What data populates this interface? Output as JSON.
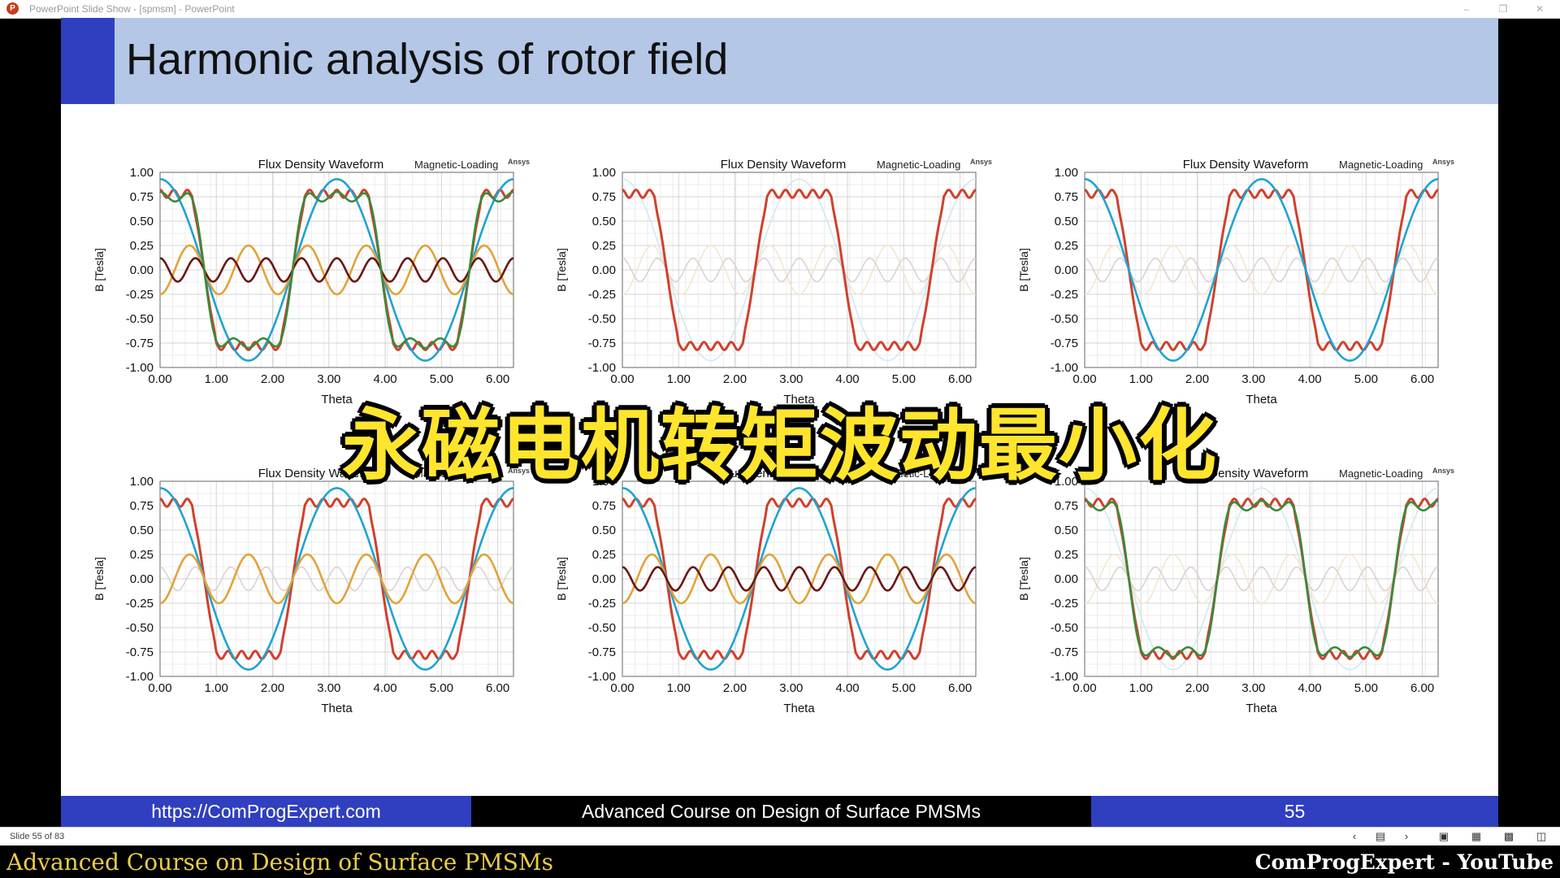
{
  "window": {
    "title": "PowerPoint Slide Show - [spmsm] - PowerPoint",
    "app_icon": "powerpoint-icon",
    "controls": [
      "minimize-icon",
      "restore-icon",
      "close-icon"
    ]
  },
  "slide": {
    "title": "Harmonic analysis of rotor field",
    "footer": {
      "left": "https://ComProgExpert.com",
      "center": "Advanced Course on Design of Surface PMSMs",
      "right": "55"
    }
  },
  "overlay": {
    "caption": "永磁电机转矩波动最小化"
  },
  "statusbar": {
    "slide_counter": "Slide 55 of 83",
    "icons": [
      "prev-icon",
      "slide-sorter-icon",
      "next-icon",
      "normal-view-icon",
      "grid-view-icon",
      "reading-view-icon",
      "slideshow-icon"
    ]
  },
  "bottom_band": {
    "left": "Advanced Course on Design of Surface PMSMs",
    "right": "ComProgExpert - YouTube"
  },
  "colors": {
    "accent": "#2f3fbf",
    "title_band": "#b4c7e7",
    "overlay_text": "#ffe52e",
    "fundamental": "#1fa3d1",
    "third_harmonic": "#e1a33a",
    "fifth_harmonic": "#6b1616",
    "total": "#d0402c",
    "sum": "#3a8a3a"
  },
  "chart_data": [
    {
      "type": "line",
      "title": "Flux Density Waveform",
      "subtitle": "Magnetic-Loading",
      "brand": "Ansys",
      "xlabel": "Theta",
      "ylabel": "B [Tesla]",
      "xlim": [
        0,
        6.28
      ],
      "ylim": [
        -1,
        1
      ],
      "xticks": [
        "0.00",
        "1.00",
        "2.00",
        "3.00",
        "4.00",
        "5.00",
        "6.00"
      ],
      "yticks": [
        "1.00",
        "0.75",
        "0.50",
        "0.25",
        "0.00",
        "-0.25",
        "-0.50",
        "-0.75",
        "-1.00"
      ],
      "grid": true,
      "poles": 2,
      "series": [
        {
          "key": "total",
          "waveform": "flat-top with ripple",
          "peak": 0.78,
          "faded": false
        },
        {
          "key": "fundamental",
          "harmonic": 1,
          "amplitude": 0.93,
          "faded": false
        },
        {
          "key": "third_harmonic",
          "harmonic": 3,
          "amplitude": 0.25,
          "faded": false
        },
        {
          "key": "fifth_harmonic",
          "harmonic": 5,
          "amplitude": 0.12,
          "faded": false
        },
        {
          "key": "sum",
          "harmonics": [
            1,
            3,
            5
          ],
          "faded": false
        }
      ]
    },
    {
      "type": "line",
      "title": "Flux Density Waveform",
      "subtitle": "Magnetic-Loading",
      "brand": "Ansys",
      "xlabel": "Theta",
      "ylabel": "B [Tesla]",
      "xlim": [
        0,
        6.28
      ],
      "ylim": [
        -1,
        1
      ],
      "xticks": [
        "0.00",
        "1.00",
        "2.00",
        "3.00",
        "4.00",
        "5.00",
        "6.00"
      ],
      "yticks": [
        "1.00",
        "0.75",
        "0.50",
        "0.25",
        "0.00",
        "-0.25",
        "-0.50",
        "-0.75",
        "-1.00"
      ],
      "grid": true,
      "poles": 2,
      "series": [
        {
          "key": "total",
          "waveform": "flat-top with ripple",
          "peak": 0.78,
          "faded": false
        },
        {
          "key": "fundamental",
          "harmonic": 1,
          "amplitude": 0.93,
          "faded": true
        },
        {
          "key": "third_harmonic",
          "harmonic": 3,
          "amplitude": 0.25,
          "faded": true
        },
        {
          "key": "fifth_harmonic",
          "harmonic": 5,
          "amplitude": 0.12,
          "faded": true
        }
      ]
    },
    {
      "type": "line",
      "title": "Flux Density Waveform",
      "subtitle": "Magnetic-Loading",
      "brand": "Ansys",
      "xlabel": "Theta",
      "ylabel": "B [Tesla]",
      "xlim": [
        0,
        6.28
      ],
      "ylim": [
        -1,
        1
      ],
      "xticks": [
        "0.00",
        "1.00",
        "2.00",
        "3.00",
        "4.00",
        "5.00",
        "6.00"
      ],
      "yticks": [
        "1.00",
        "0.75",
        "0.50",
        "0.25",
        "0.00",
        "-0.25",
        "-0.50",
        "-0.75",
        "-1.00"
      ],
      "grid": true,
      "poles": 2,
      "series": [
        {
          "key": "total",
          "waveform": "flat-top with ripple",
          "peak": 0.78,
          "faded": false
        },
        {
          "key": "fundamental",
          "harmonic": 1,
          "amplitude": 0.93,
          "faded": false
        },
        {
          "key": "third_harmonic",
          "harmonic": 3,
          "amplitude": 0.25,
          "faded": true
        },
        {
          "key": "fifth_harmonic",
          "harmonic": 5,
          "amplitude": 0.12,
          "faded": true
        }
      ]
    },
    {
      "type": "line",
      "title": "Flux Density Waveform",
      "subtitle": "Magnetic-Loading",
      "brand": "Ansys",
      "xlabel": "Theta",
      "ylabel": "B [Tesla]",
      "xlim": [
        0,
        6.28
      ],
      "ylim": [
        -1,
        1
      ],
      "xticks": [
        "0.00",
        "1.00",
        "2.00",
        "3.00",
        "4.00",
        "5.00",
        "6.00"
      ],
      "yticks": [
        "1.00",
        "0.75",
        "0.50",
        "0.25",
        "0.00",
        "-0.25",
        "-0.50",
        "-0.75",
        "-1.00"
      ],
      "grid": true,
      "poles": 2,
      "series": [
        {
          "key": "total",
          "waveform": "flat-top with ripple",
          "peak": 0.78,
          "faded": false
        },
        {
          "key": "fundamental",
          "harmonic": 1,
          "amplitude": 0.93,
          "faded": false
        },
        {
          "key": "third_harmonic",
          "harmonic": 3,
          "amplitude": 0.25,
          "faded": false
        },
        {
          "key": "fifth_harmonic",
          "harmonic": 5,
          "amplitude": 0.12,
          "faded": true
        }
      ]
    },
    {
      "type": "line",
      "title": "Flux Density Waveform",
      "subtitle": "Magnetic-Loading",
      "brand": "Ansys",
      "xlabel": "Theta",
      "ylabel": "B [Tesla]",
      "xlim": [
        0,
        6.28
      ],
      "ylim": [
        -1,
        1
      ],
      "xticks": [
        "0.00",
        "1.00",
        "2.00",
        "3.00",
        "4.00",
        "5.00",
        "6.00"
      ],
      "yticks": [
        "1.00",
        "0.75",
        "0.50",
        "0.25",
        "0.00",
        "-0.25",
        "-0.50",
        "-0.75",
        "-1.00"
      ],
      "grid": true,
      "poles": 2,
      "series": [
        {
          "key": "total",
          "waveform": "flat-top with ripple",
          "peak": 0.78,
          "faded": false
        },
        {
          "key": "fundamental",
          "harmonic": 1,
          "amplitude": 0.93,
          "faded": false
        },
        {
          "key": "third_harmonic",
          "harmonic": 3,
          "amplitude": 0.25,
          "faded": false
        },
        {
          "key": "fifth_harmonic",
          "harmonic": 5,
          "amplitude": 0.12,
          "faded": false
        }
      ]
    },
    {
      "type": "line",
      "title": "Flux Density Waveform",
      "subtitle": "Magnetic-Loading",
      "brand": "Ansys",
      "xlabel": "Theta",
      "ylabel": "B [Tesla]",
      "xlim": [
        0,
        6.28
      ],
      "ylim": [
        -1,
        1
      ],
      "xticks": [
        "0.00",
        "1.00",
        "2.00",
        "3.00",
        "4.00",
        "5.00",
        "6.00"
      ],
      "yticks": [
        "1.00",
        "0.75",
        "0.50",
        "0.25",
        "0.00",
        "-0.25",
        "-0.50",
        "-0.75",
        "-1.00"
      ],
      "grid": true,
      "poles": 2,
      "series": [
        {
          "key": "total",
          "waveform": "flat-top with ripple",
          "peak": 0.78,
          "faded": false
        },
        {
          "key": "fundamental",
          "harmonic": 1,
          "amplitude": 0.93,
          "faded": true
        },
        {
          "key": "third_harmonic",
          "harmonic": 3,
          "amplitude": 0.25,
          "faded": true
        },
        {
          "key": "fifth_harmonic",
          "harmonic": 5,
          "amplitude": 0.12,
          "faded": true
        },
        {
          "key": "sum",
          "harmonics": [
            1,
            3,
            5
          ],
          "faded": false
        }
      ]
    }
  ]
}
